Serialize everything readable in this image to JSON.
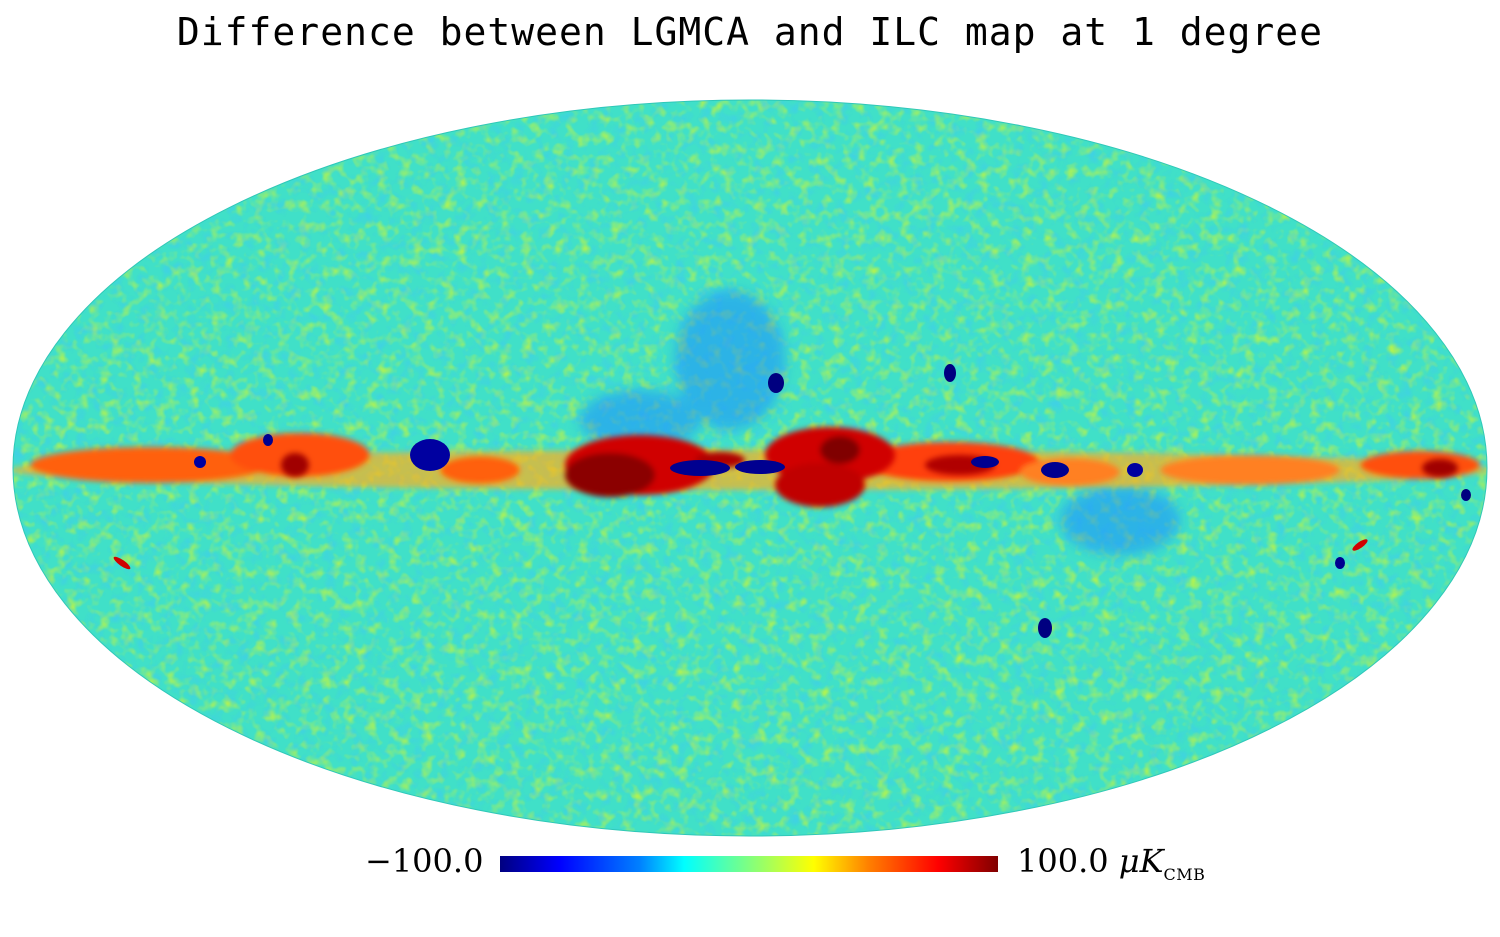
{
  "title": "Difference between LGMCA and ILC map at 1 degree",
  "colorbar": {
    "min_label": "−100.0",
    "max_label": "100.0",
    "unit_main": "μK",
    "unit_sub": "CMB",
    "min_value": -100.0,
    "max_value": 100.0
  },
  "map": {
    "projection": "Mollweide",
    "colormap": [
      "#000080",
      "#0000ff",
      "#0080ff",
      "#00ffff",
      "#80ff80",
      "#ffff00",
      "#ff8000",
      "#ff0000",
      "#800000"
    ],
    "background_color": "#40e0c8"
  }
}
